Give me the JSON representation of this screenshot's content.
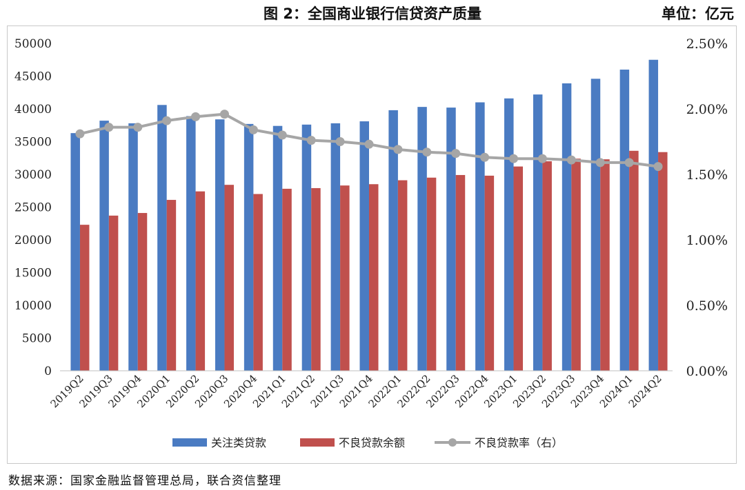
{
  "header": {
    "title": "图 2：全国商业银行信贷资产质量",
    "unit": "单位：亿元"
  },
  "source": "数据来源：国家金融监督管理总局，联合资信整理",
  "colors": {
    "blue": "#4a7bc2",
    "red": "#c0504d",
    "gray": "#a6a6a6"
  },
  "chart_data": {
    "type": "bar",
    "categories": [
      "2019Q2",
      "2019Q3",
      "2019Q4",
      "2020Q1",
      "2020Q2",
      "2020Q3",
      "2020Q4",
      "2021Q1",
      "2021Q2",
      "2021Q3",
      "2021Q4",
      "2022Q1",
      "2022Q2",
      "2022Q3",
      "2022Q4",
      "2023Q1",
      "2023Q2",
      "2023Q3",
      "2023Q4",
      "2024Q1",
      "2024Q2"
    ],
    "y_ticks": [
      "0",
      "5000",
      "10000",
      "15000",
      "20000",
      "25000",
      "30000",
      "35000",
      "40000",
      "45000",
      "50000"
    ],
    "y2_ticks": [
      "0.00%",
      "0.50%",
      "1.00%",
      "1.50%",
      "2.00%",
      "2.50%"
    ],
    "ylim": [
      0,
      50000
    ],
    "y2lim": [
      0,
      2.5
    ],
    "legend_position": "bottom",
    "series": [
      {
        "name": "关注类贷款",
        "type": "bar",
        "axis": "left",
        "values": [
          36300,
          38200,
          37800,
          40600,
          38900,
          38400,
          37700,
          37400,
          37600,
          37800,
          38100,
          39800,
          40300,
          40200,
          41000,
          41600,
          42200,
          43900,
          44600,
          46000,
          47500
        ]
      },
      {
        "name": "不良贷款余额",
        "type": "bar",
        "axis": "left",
        "values": [
          22300,
          23700,
          24100,
          26100,
          27400,
          28400,
          27000,
          27800,
          27900,
          28300,
          28500,
          29100,
          29500,
          29900,
          29800,
          31200,
          32000,
          32400,
          32300,
          33600,
          33400
        ]
      },
      {
        "name": "不良贷款率（右）",
        "type": "line",
        "axis": "right",
        "values": [
          1.81,
          1.86,
          1.86,
          1.91,
          1.94,
          1.96,
          1.84,
          1.8,
          1.76,
          1.75,
          1.73,
          1.69,
          1.67,
          1.66,
          1.63,
          1.62,
          1.62,
          1.61,
          1.59,
          1.59,
          1.56
        ]
      }
    ]
  }
}
